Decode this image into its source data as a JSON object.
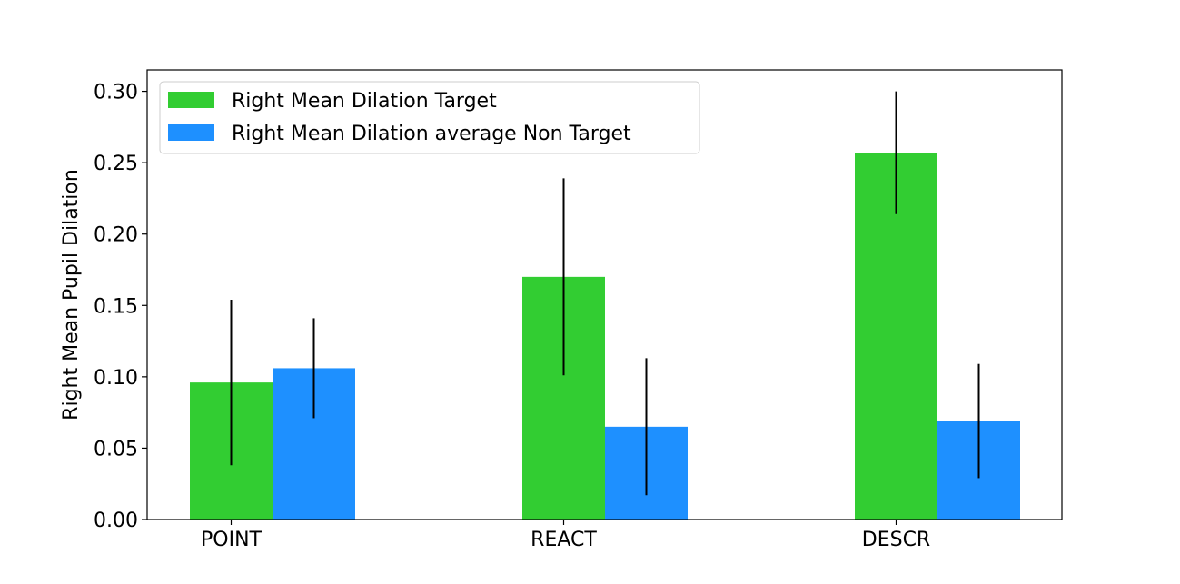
{
  "chart_data": {
    "type": "bar",
    "categories": [
      "POINT",
      "REACT",
      "DESCR"
    ],
    "series": [
      {
        "name": "Right Mean Dilation Target",
        "color": "#32CD32",
        "values": [
          0.096,
          0.17,
          0.257
        ],
        "errors": [
          0.058,
          0.069,
          0.043
        ]
      },
      {
        "name": "Right Mean Dilation average Non Target",
        "color": "#1E90FF",
        "values": [
          0.106,
          0.065,
          0.069
        ],
        "errors": [
          0.035,
          0.048,
          0.04
        ]
      }
    ],
    "xlabel": "",
    "ylabel": "Right Mean Pupil Dilation",
    "ylim": [
      0,
      0.315
    ],
    "yticks": [
      "0.00",
      "0.05",
      "0.10",
      "0.15",
      "0.20",
      "0.25",
      "0.30"
    ],
    "legend_position": "top-left",
    "grid": false
  }
}
